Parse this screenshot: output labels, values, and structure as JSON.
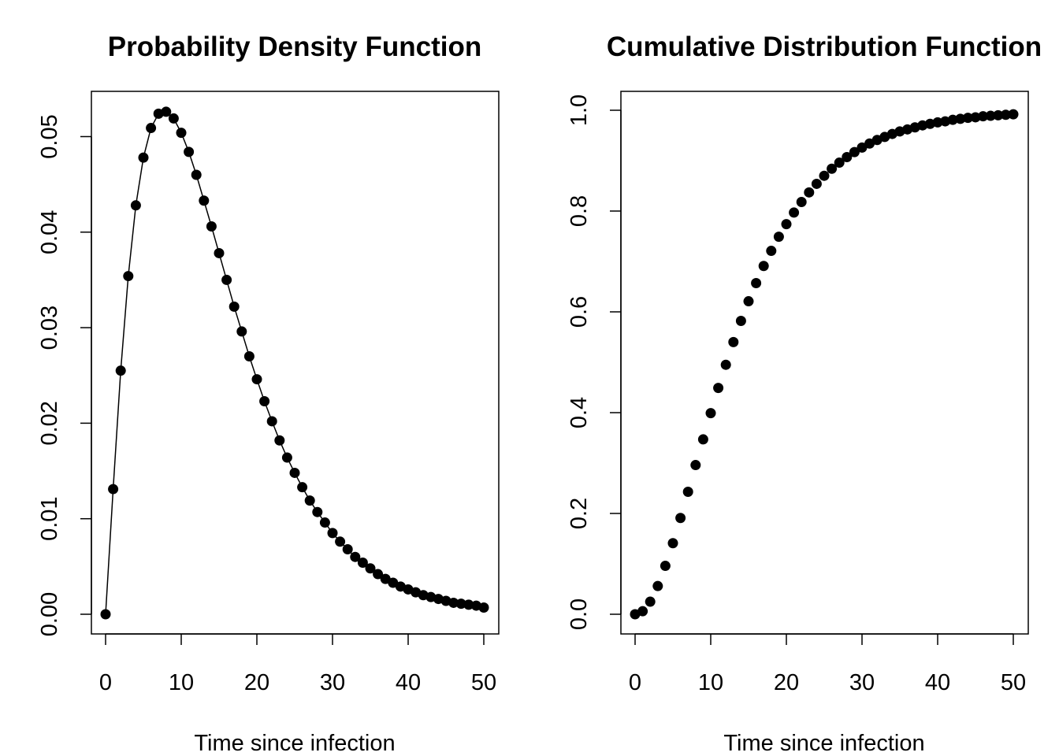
{
  "chart_data": [
    {
      "type": "line",
      "title": "Probability Density Function",
      "xlabel": "Time since infection",
      "ylabel": "",
      "xlim": [
        0,
        50
      ],
      "ylim": [
        0.0,
        0.053
      ],
      "x_ticks": [
        "0",
        "10",
        "20",
        "30",
        "40",
        "50"
      ],
      "y_ticks": [
        "0.00",
        "0.01",
        "0.02",
        "0.03",
        "0.04",
        "0.05"
      ],
      "grid": false,
      "legend": "none",
      "marker": "filled-circle",
      "line_style": "solid thin line behind points",
      "color": "#000000",
      "series": [
        {
          "x": [
            0,
            1,
            2,
            3,
            4,
            5,
            6,
            7,
            8,
            9,
            10,
            11,
            12,
            13,
            14,
            15,
            16,
            17,
            18,
            19,
            20,
            21,
            22,
            23,
            24,
            25,
            26,
            27,
            28,
            29,
            30,
            31,
            32,
            33,
            34,
            35,
            36,
            37,
            38,
            39,
            40,
            41,
            42,
            43,
            44,
            45,
            46,
            47,
            48,
            49,
            50
          ],
          "values": [
            0.0,
            0.0131,
            0.0255,
            0.0354,
            0.0428,
            0.0478,
            0.0509,
            0.0524,
            0.0526,
            0.0519,
            0.0504,
            0.0484,
            0.046,
            0.0433,
            0.0406,
            0.0378,
            0.035,
            0.0322,
            0.0296,
            0.027,
            0.0246,
            0.0223,
            0.0202,
            0.0182,
            0.0164,
            0.0148,
            0.0133,
            0.0119,
            0.0107,
            0.0096,
            0.0085,
            0.0076,
            0.0068,
            0.006,
            0.0054,
            0.0048,
            0.0042,
            0.0037,
            0.0033,
            0.0029,
            0.0026,
            0.0023,
            0.002,
            0.0018,
            0.0016,
            0.0014,
            0.0012,
            0.0011,
            0.001,
            0.0009,
            0.0007
          ]
        }
      ]
    },
    {
      "type": "scatter",
      "title": "Cumulative Distribution Function",
      "xlabel": "Time since infection",
      "ylabel": "",
      "xlim": [
        0,
        50
      ],
      "ylim": [
        0.0,
        1.0
      ],
      "x_ticks": [
        "0",
        "10",
        "20",
        "30",
        "40",
        "50"
      ],
      "y_ticks": [
        "0.0",
        "0.2",
        "0.4",
        "0.6",
        "0.8",
        "1.0"
      ],
      "grid": false,
      "legend": "none",
      "marker": "filled-circle",
      "color": "#000000",
      "series": [
        {
          "x": [
            0,
            1,
            2,
            3,
            4,
            5,
            6,
            7,
            8,
            9,
            10,
            11,
            12,
            13,
            14,
            15,
            16,
            17,
            18,
            19,
            20,
            21,
            22,
            23,
            24,
            25,
            26,
            27,
            28,
            29,
            30,
            31,
            32,
            33,
            34,
            35,
            36,
            37,
            38,
            39,
            40,
            41,
            42,
            43,
            44,
            45,
            46,
            47,
            48,
            49,
            50
          ],
          "values": [
            0.0,
            0.006,
            0.025,
            0.056,
            0.096,
            0.141,
            0.191,
            0.243,
            0.296,
            0.347,
            0.399,
            0.449,
            0.495,
            0.54,
            0.582,
            0.621,
            0.657,
            0.691,
            0.721,
            0.749,
            0.774,
            0.797,
            0.818,
            0.837,
            0.854,
            0.87,
            0.884,
            0.896,
            0.907,
            0.917,
            0.926,
            0.934,
            0.941,
            0.947,
            0.953,
            0.958,
            0.962,
            0.966,
            0.97,
            0.973,
            0.976,
            0.978,
            0.981,
            0.983,
            0.985,
            0.986,
            0.988,
            0.989,
            0.99,
            0.991,
            0.992
          ]
        }
      ]
    }
  ]
}
